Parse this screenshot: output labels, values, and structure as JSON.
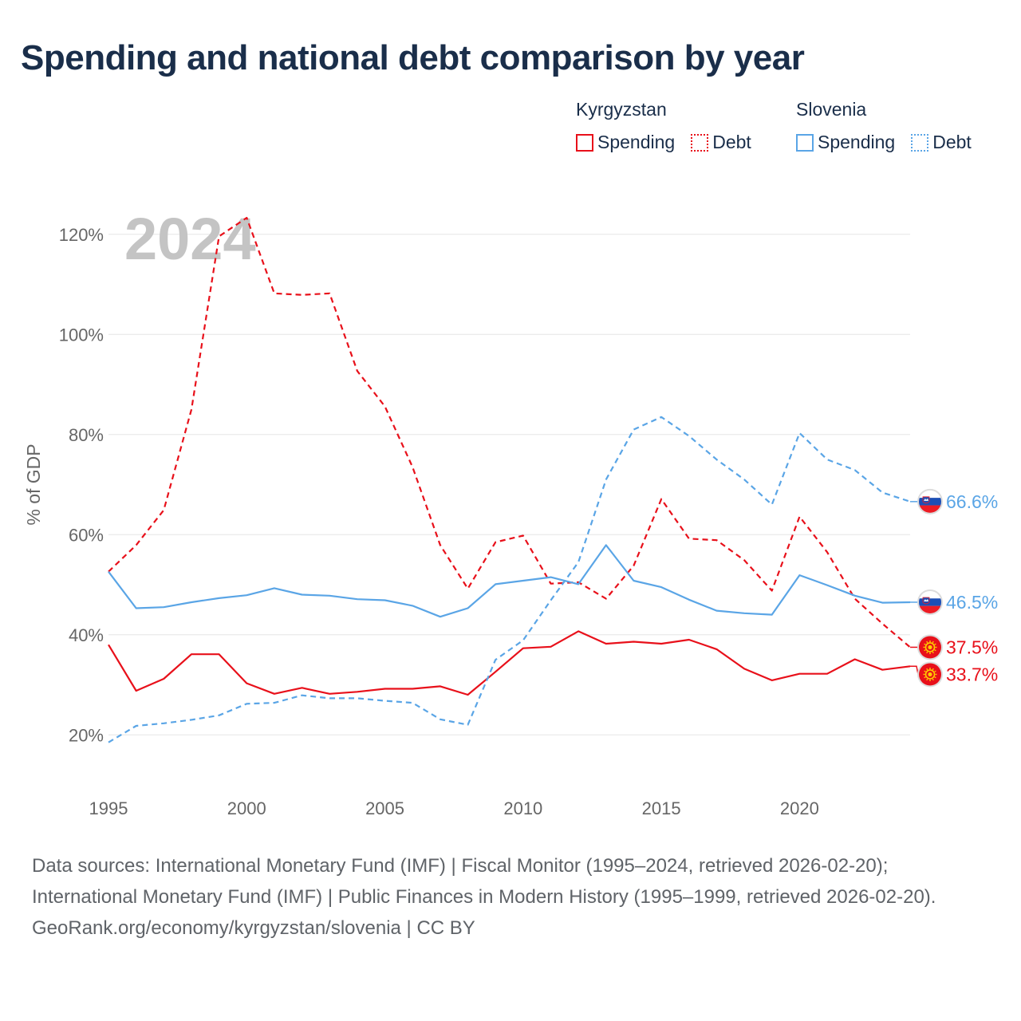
{
  "title": "Spending and national debt comparison by year",
  "legend": [
    {
      "country": "Kyrgyzstan",
      "color": "#e8101a",
      "items": [
        "Spending",
        "Debt"
      ]
    },
    {
      "country": "Slovenia",
      "color": "#5aa5e6",
      "items": [
        "Spending",
        "Debt"
      ]
    }
  ],
  "chart_data": {
    "type": "line",
    "year_label": "2024",
    "ylabel": "% of GDP",
    "ylim": [
      10,
      130
    ],
    "xlim": [
      1995,
      2024
    ],
    "yticks": [
      20,
      40,
      60,
      80,
      100,
      120
    ],
    "ytick_labels": [
      "20%",
      "40%",
      "60%",
      "80%",
      "100%",
      "120%"
    ],
    "xticks": [
      1995,
      2000,
      2005,
      2010,
      2015,
      2020
    ],
    "xtick_labels": [
      "1995",
      "2000",
      "2005",
      "2010",
      "2015",
      "2020"
    ],
    "x": [
      1995,
      1996,
      1997,
      1998,
      1999,
      2000,
      2001,
      2002,
      2003,
      2004,
      2005,
      2006,
      2007,
      2008,
      2009,
      2010,
      2011,
      2012,
      2013,
      2014,
      2015,
      2016,
      2017,
      2018,
      2019,
      2020,
      2021,
      2022,
      2023,
      2024
    ],
    "series": [
      {
        "name": "Kyrgyzstan Spending",
        "country": "Kyrgyzstan",
        "kind": "Spending",
        "color": "#e8101a",
        "dashed": false,
        "end_label": "33.7%",
        "values": [
          38.0,
          28.8,
          31.2,
          36.1,
          36.1,
          30.3,
          28.2,
          29.4,
          28.2,
          28.6,
          29.2,
          29.2,
          29.7,
          28.0,
          32.6,
          37.3,
          37.6,
          40.7,
          38.2,
          38.6,
          38.2,
          39.0,
          37.1,
          33.2,
          30.9,
          32.2,
          32.2,
          35.1,
          33.0,
          33.7
        ]
      },
      {
        "name": "Kyrgyzstan Debt",
        "country": "Kyrgyzstan",
        "kind": "Debt",
        "color": "#e8101a",
        "dashed": true,
        "end_label": "37.5%",
        "values": [
          52.6,
          57.9,
          64.9,
          85.0,
          119.6,
          123.3,
          108.2,
          107.9,
          108.2,
          92.7,
          85.6,
          73.5,
          57.9,
          49.2,
          58.5,
          59.8,
          50.2,
          50.5,
          47.2,
          53.8,
          67.1,
          59.2,
          58.9,
          54.9,
          48.8,
          63.6,
          56.5,
          47.2,
          42.2,
          37.5
        ]
      },
      {
        "name": "Slovenia Spending",
        "country": "Slovenia",
        "kind": "Spending",
        "color": "#5aa5e6",
        "dashed": false,
        "end_label": "46.5%",
        "values": [
          52.6,
          45.3,
          45.5,
          46.5,
          47.3,
          47.9,
          49.3,
          48.0,
          47.8,
          47.1,
          46.9,
          45.8,
          43.6,
          45.3,
          50.1,
          50.8,
          51.5,
          50.1,
          57.9,
          50.8,
          49.5,
          47.0,
          44.8,
          44.3,
          44.0,
          51.9,
          49.9,
          47.8,
          46.4,
          46.5
        ]
      },
      {
        "name": "Slovenia Debt",
        "country": "Slovenia",
        "kind": "Debt",
        "color": "#5aa5e6",
        "dashed": true,
        "end_label": "66.6%",
        "values": [
          18.5,
          21.8,
          22.3,
          23.0,
          23.9,
          26.2,
          26.4,
          27.9,
          27.3,
          27.3,
          26.8,
          26.4,
          23.1,
          22.0,
          35.0,
          38.9,
          46.9,
          54.5,
          71.0,
          81.0,
          83.5,
          79.7,
          75.0,
          71.0,
          66.0,
          80.3,
          75.0,
          72.9,
          68.4,
          66.6
        ]
      }
    ]
  },
  "footer": {
    "sources": "Data sources: International Monetary Fund (IMF) | Fiscal Monitor (1995–2024, retrieved 2026-02-20); International Monetary Fund (IMF) | Public Finances in Modern History (1995–1999, retrieved 2026-02-20).",
    "credit": "GeoRank.org/economy/kyrgyzstan/slovenia | CC BY"
  }
}
